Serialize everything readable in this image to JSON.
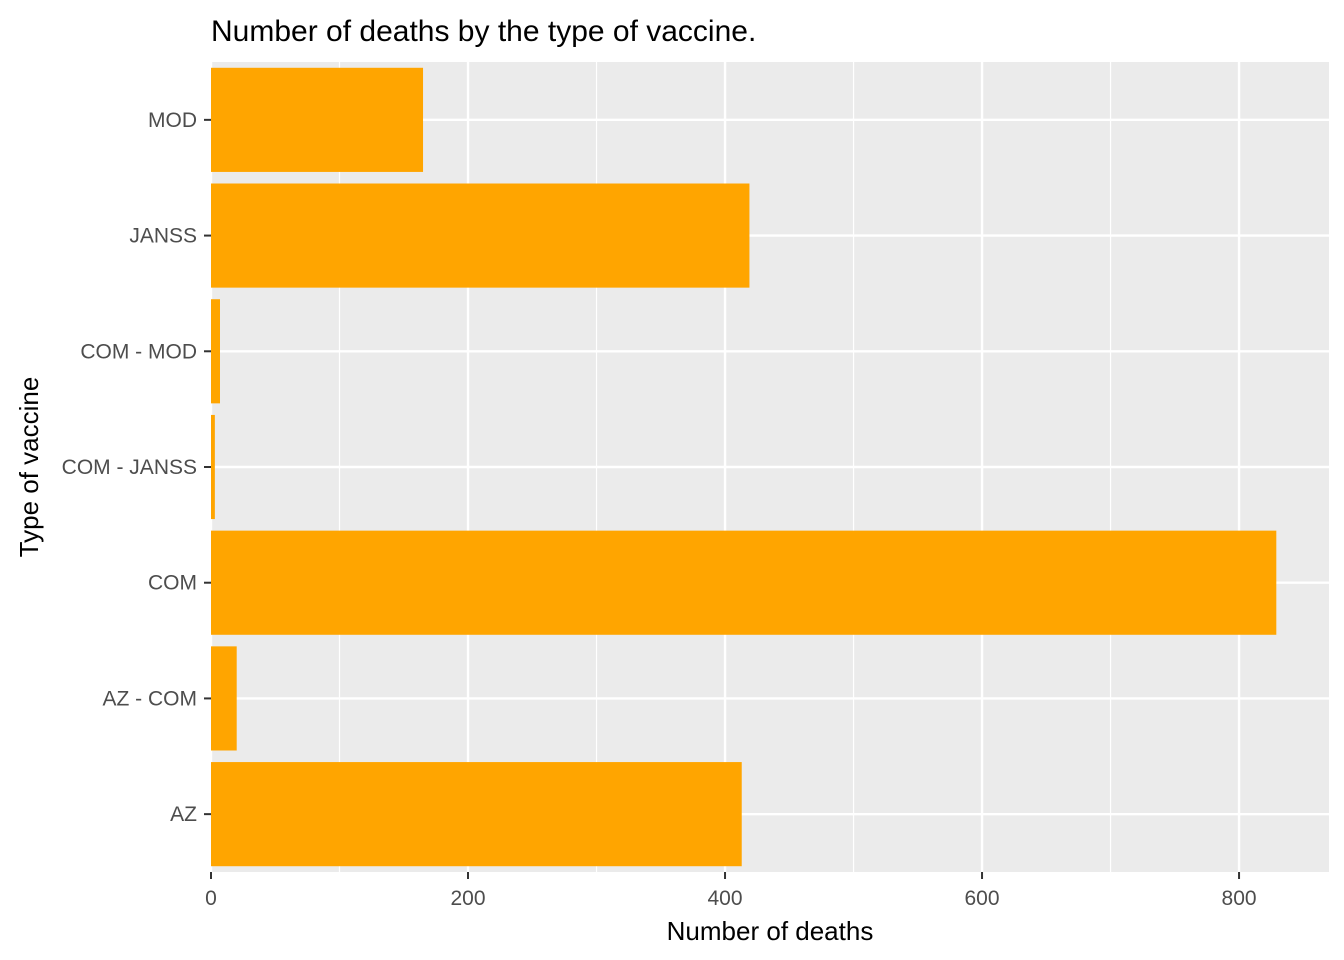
{
  "chart_data": {
    "type": "bar",
    "orientation": "horizontal",
    "title": "Number of deaths by the type of vaccine.",
    "xlabel": "Number of deaths",
    "ylabel": "Type of vaccine",
    "categories": [
      "AZ",
      "AZ - COM",
      "COM",
      "COM - JANSS",
      "COM - MOD",
      "JANSS",
      "MOD"
    ],
    "values": [
      413,
      20,
      829,
      3,
      7,
      419,
      165
    ],
    "xlim": [
      0,
      870
    ],
    "xticks": [
      0,
      200,
      400,
      600,
      800
    ],
    "xtick_labels": [
      "0",
      "200",
      "400",
      "600",
      "800"
    ],
    "grid": true,
    "bar_color": "#FFA500",
    "panel_color": "#EBEBEB",
    "grid_color": "#FFFFFF"
  }
}
